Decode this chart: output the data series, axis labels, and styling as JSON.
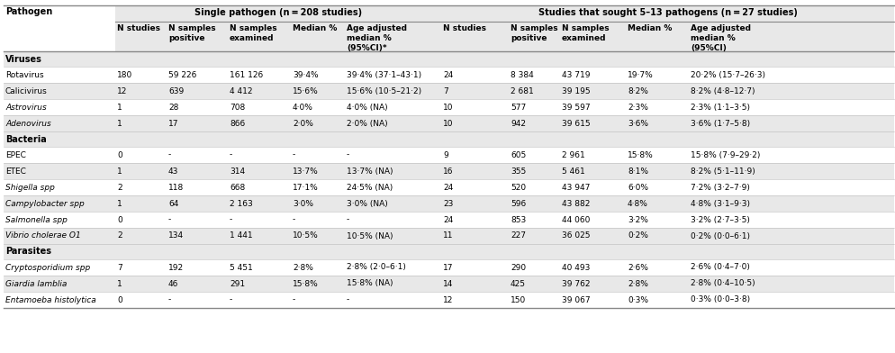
{
  "title_left": "Pathogen",
  "group1_header": "Single pathogen (n = 208 studies)",
  "group2_header": "Studies that sought 5–13 pathogens (n = 27 studies)",
  "col_header_texts": [
    [
      "N studies",
      "N samples\npositive",
      "N samples\nexamined",
      "Median %",
      "Age adjusted\nmedian %\n(95%CI)*"
    ],
    [
      "N studies",
      "N samples\npositive",
      "N samples\nexamined",
      "Median %",
      "Age adjusted\nmedian %\n(95%CI)"
    ]
  ],
  "rows": [
    [
      "Rotavirus",
      "180",
      "59 226",
      "161 126",
      "39·4%",
      "39·4% (37·1–43·1)",
      "24",
      "8 384",
      "43 719",
      "19·7%",
      "20·2% (15·7–26·3)"
    ],
    [
      "Calicivirus",
      "12",
      "639",
      "4 412",
      "15·6%",
      "15·6% (10·5–21·2)",
      "7",
      "2 681",
      "39 195",
      "8·2%",
      "8·2% (4·8–12·7)"
    ],
    [
      "Astrovirus",
      "1",
      "28",
      "708",
      "4·0%",
      "4·0% (NA)",
      "10",
      "577",
      "39 597",
      "2·3%",
      "2·3% (1·1–3·5)"
    ],
    [
      "Adenovirus",
      "1",
      "17",
      "866",
      "2·0%",
      "2·0% (NA)",
      "10",
      "942",
      "39 615",
      "3·6%",
      "3·6% (1·7–5·8)"
    ],
    [
      "EPEC",
      "0",
      "-",
      "-",
      "-",
      "-",
      "9",
      "605",
      "2 961",
      "15·8%",
      "15·8% (7·9–29·2)"
    ],
    [
      "ETEC",
      "1",
      "43",
      "314",
      "13·7%",
      "13·7% (NA)",
      "16",
      "355",
      "5 461",
      "8·1%",
      "8·2% (5·1–11·9)"
    ],
    [
      "Shigella spp",
      "2",
      "118",
      "668",
      "17·1%",
      "24·5% (NA)",
      "24",
      "520",
      "43 947",
      "6·0%",
      "7·2% (3·2–7·9)"
    ],
    [
      "Campylobacter spp",
      "1",
      "64",
      "2 163",
      "3·0%",
      "3·0% (NA)",
      "23",
      "596",
      "43 882",
      "4·8%",
      "4·8% (3·1–9·3)"
    ],
    [
      "Salmonella spp",
      "0",
      "-",
      "-",
      "-",
      "-",
      "24",
      "853",
      "44 060",
      "3·2%",
      "3·2% (2·7–3·5)"
    ],
    [
      "Vibrio cholerae O1",
      "2",
      "134",
      "1 441",
      "10·5%",
      "10·5% (NA)",
      "11",
      "227",
      "36 025",
      "0·2%",
      "0·2% (0·0–6·1)"
    ],
    [
      "Cryptosporidium spp",
      "7",
      "192",
      "5 451",
      "2·8%",
      "2·8% (2·0–6·1)",
      "17",
      "290",
      "40 493",
      "2·6%",
      "2·6% (0·4–7·0)"
    ],
    [
      "Giardia lamblia",
      "1",
      "46",
      "291",
      "15·8%",
      "15·8% (NA)",
      "14",
      "425",
      "39 762",
      "2·8%",
      "2·8% (0·4–10·5)"
    ],
    [
      "Entamoeba histolytica",
      "0",
      "-",
      "-",
      "-",
      "-",
      "12",
      "150",
      "39 067",
      "0·3%",
      "0·3% (0·0–3·8)"
    ]
  ],
  "italic_pathogens": [
    "Astrovirus",
    "Adenovirus",
    "Shigella spp",
    "Campylobacter spp",
    "Salmonella spp",
    "Vibrio cholerae O1",
    "Cryptosporidium spp",
    "Giardia lamblia",
    "Entamoeba histolytica"
  ],
  "sections": [
    {
      "name": "Viruses",
      "start": 0,
      "end": 3
    },
    {
      "name": "Bacteria",
      "start": 4,
      "end": 9
    },
    {
      "name": "Parasites",
      "start": 10,
      "end": 12
    }
  ],
  "bg_grey": "#e8e8e8",
  "bg_white": "#ffffff",
  "line_thick": "#888888",
  "line_thin": "#bbbbbb",
  "font_size": 6.5,
  "header_font_size": 7.0
}
